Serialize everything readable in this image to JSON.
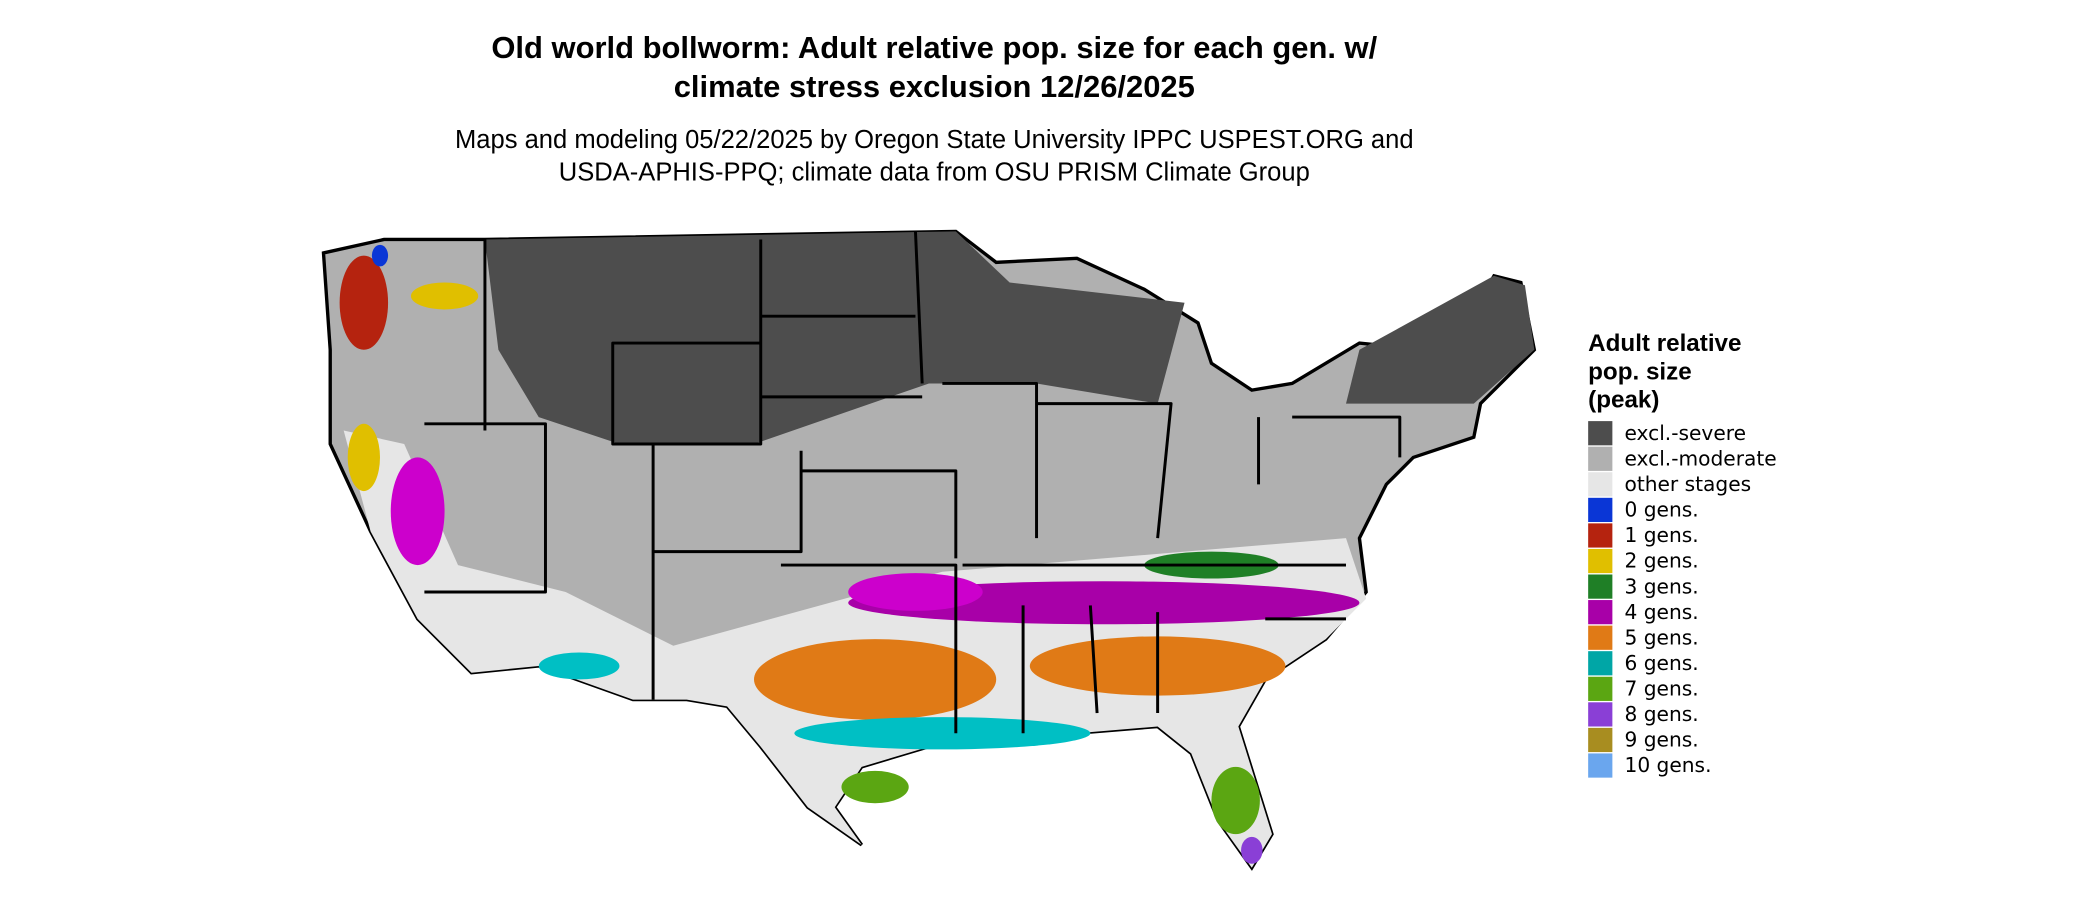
{
  "header": {
    "title_lines": [
      "Old world bollworm: Adult relative pop. size for each gen. w/",
      "climate stress exclusion 12/26/2025"
    ],
    "subtitle_lines": [
      "Maps and modeling 05/22/2025 by Oregon State University IPPC USPEST.ORG and",
      "USDA-APHIS-PPQ; climate data from OSU PRISM Climate Group"
    ]
  },
  "legend": {
    "title_lines": [
      "Adult relative",
      "pop. size",
      "(peak)"
    ],
    "items": [
      {
        "label": "excl.-severe",
        "color": "#4d4d4d"
      },
      {
        "label": "excl.-moderate",
        "color": "#b0b0b0"
      },
      {
        "label": "other stages",
        "color": "#e6e6e6"
      },
      {
        "label": "0 gens.",
        "color": "#0a36d6"
      },
      {
        "label": "1 gens.",
        "color": "#b5230f"
      },
      {
        "label": "2 gens.",
        "color": "#e0bf00"
      },
      {
        "label": "3 gens.",
        "color": "#1f7f26"
      },
      {
        "label": "4 gens.",
        "color": "#a800a8"
      },
      {
        "label": "5 gens.",
        "color": "#e07a16"
      },
      {
        "label": "6 gens.",
        "color": "#00a6a6"
      },
      {
        "label": "7 gens.",
        "color": "#5ba612"
      },
      {
        "label": "8 gens.",
        "color": "#8a3fd6"
      },
      {
        "label": "9 gens.",
        "color": "#a88d20"
      },
      {
        "label": "10 gens.",
        "color": "#6aa6ee"
      }
    ]
  }
}
